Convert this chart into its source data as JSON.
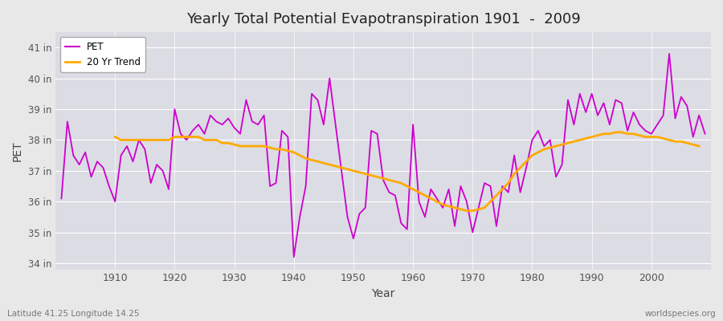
{
  "title": "Yearly Total Potential Evapotranspiration 1901  -  2009",
  "ylabel": "PET",
  "xlabel": "Year",
  "footer_left": "Latitude 41.25 Longitude 14.25",
  "footer_right": "worldspecies.org",
  "pet_color": "#cc00cc",
  "trend_color": "#ffaa00",
  "bg_color": "#e8e8e8",
  "plot_bg_color": "#dcdce4",
  "ylim": [
    33.8,
    41.5
  ],
  "yticks": [
    34,
    35,
    36,
    37,
    38,
    39,
    40,
    41
  ],
  "ytick_labels": [
    "34 in",
    "35 in",
    "36 in",
    "37 in",
    "38 in",
    "39 in",
    "40 in",
    "41 in"
  ],
  "xlim": [
    1900,
    2010
  ],
  "xticks": [
    1910,
    1920,
    1930,
    1940,
    1950,
    1960,
    1970,
    1980,
    1990,
    2000
  ],
  "years": [
    1901,
    1902,
    1903,
    1904,
    1905,
    1906,
    1907,
    1908,
    1909,
    1910,
    1911,
    1912,
    1913,
    1914,
    1915,
    1916,
    1917,
    1918,
    1919,
    1920,
    1921,
    1922,
    1923,
    1924,
    1925,
    1926,
    1927,
    1928,
    1929,
    1930,
    1931,
    1932,
    1933,
    1934,
    1935,
    1936,
    1937,
    1938,
    1939,
    1940,
    1941,
    1942,
    1943,
    1944,
    1945,
    1946,
    1947,
    1948,
    1949,
    1950,
    1951,
    1952,
    1953,
    1954,
    1955,
    1956,
    1957,
    1958,
    1959,
    1960,
    1961,
    1962,
    1963,
    1964,
    1965,
    1966,
    1967,
    1968,
    1969,
    1970,
    1971,
    1972,
    1973,
    1974,
    1975,
    1976,
    1977,
    1978,
    1979,
    1980,
    1981,
    1982,
    1983,
    1984,
    1985,
    1986,
    1987,
    1988,
    1989,
    1990,
    1991,
    1992,
    1993,
    1994,
    1995,
    1996,
    1997,
    1998,
    1999,
    2000,
    2001,
    2002,
    2003,
    2004,
    2005,
    2006,
    2007,
    2008,
    2009
  ],
  "pet": [
    36.1,
    38.6,
    37.5,
    37.2,
    37.6,
    36.8,
    37.3,
    37.1,
    36.5,
    36.0,
    37.5,
    37.8,
    37.3,
    38.0,
    37.7,
    36.6,
    37.2,
    37.0,
    36.4,
    39.0,
    38.2,
    38.0,
    38.3,
    38.5,
    38.2,
    38.8,
    38.6,
    38.5,
    38.7,
    38.4,
    38.2,
    39.3,
    38.6,
    38.5,
    38.8,
    36.5,
    36.6,
    38.3,
    38.1,
    34.2,
    35.5,
    36.5,
    39.5,
    39.3,
    38.5,
    40.0,
    38.5,
    37.0,
    35.5,
    34.8,
    35.6,
    35.8,
    38.3,
    38.2,
    36.7,
    36.3,
    36.2,
    35.3,
    35.1,
    38.5,
    36.0,
    35.5,
    36.4,
    36.1,
    35.8,
    36.4,
    35.2,
    36.5,
    36.0,
    35.0,
    35.8,
    36.6,
    36.5,
    35.2,
    36.5,
    36.3,
    37.5,
    36.3,
    37.1,
    38.0,
    38.3,
    37.8,
    38.0,
    36.8,
    37.2,
    39.3,
    38.5,
    39.5,
    38.9,
    39.5,
    38.8,
    39.2,
    38.5,
    39.3,
    39.2,
    38.3,
    38.9,
    38.5,
    38.3,
    38.2,
    38.5,
    38.8,
    40.8,
    38.7,
    39.4,
    39.1,
    38.1,
    38.8,
    38.2
  ],
  "trend": [
    null,
    null,
    null,
    null,
    null,
    null,
    null,
    null,
    null,
    38.1,
    38.0,
    38.0,
    38.0,
    38.0,
    38.0,
    38.0,
    38.0,
    38.0,
    38.0,
    38.1,
    38.1,
    38.1,
    38.1,
    38.1,
    38.0,
    38.0,
    38.0,
    37.9,
    37.9,
    37.85,
    37.8,
    37.8,
    37.8,
    37.8,
    37.8,
    37.75,
    37.7,
    37.7,
    37.65,
    37.6,
    37.5,
    37.4,
    37.35,
    37.3,
    37.25,
    37.2,
    37.15,
    37.1,
    37.05,
    37.0,
    36.95,
    36.9,
    36.85,
    36.8,
    36.75,
    36.7,
    36.65,
    36.6,
    36.5,
    36.4,
    36.3,
    36.2,
    36.1,
    36.0,
    35.9,
    35.85,
    35.8,
    35.75,
    35.7,
    35.7,
    35.75,
    35.8,
    36.0,
    36.2,
    36.4,
    36.6,
    36.9,
    37.1,
    37.3,
    37.5,
    37.6,
    37.7,
    37.75,
    37.8,
    37.85,
    37.9,
    37.95,
    38.0,
    38.05,
    38.1,
    38.15,
    38.2,
    38.2,
    38.25,
    38.25,
    38.2,
    38.2,
    38.15,
    38.1,
    38.1,
    38.1,
    38.05,
    38.0,
    37.95,
    37.95,
    37.9,
    37.85,
    37.8,
    null
  ]
}
